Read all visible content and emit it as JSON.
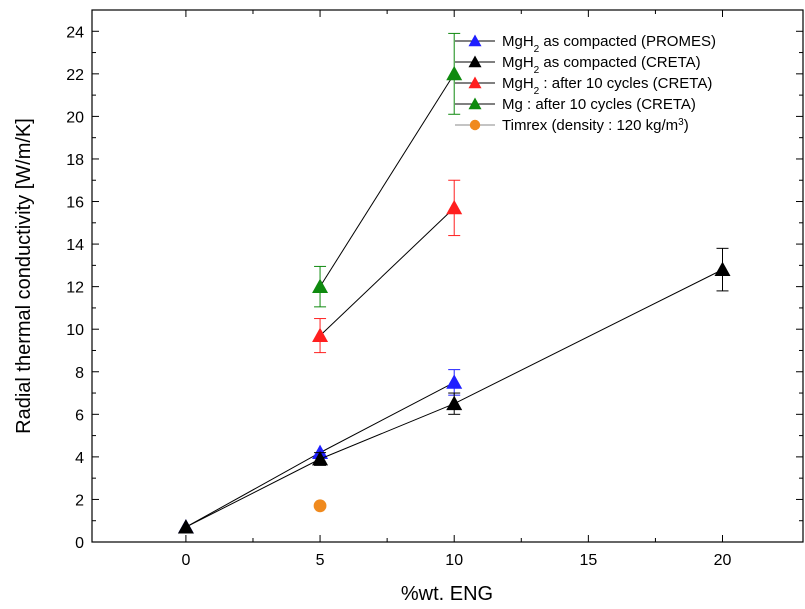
{
  "chart_data": {
    "type": "scatter",
    "title": "",
    "xlabel": "%wt. ENG",
    "ylabel": "Radial thermal conductivity  [W/m/K]",
    "xlim": [
      -3.5,
      23
    ],
    "ylim": [
      0,
      25
    ],
    "xticks": [
      0,
      5,
      10,
      15,
      20
    ],
    "yticks": [
      0,
      2,
      4,
      6,
      8,
      10,
      12,
      14,
      16,
      18,
      20,
      22,
      24
    ],
    "grid": false,
    "legend_position": "top-right",
    "series": [
      {
        "name": "MgH2 as compacted (PROMES)",
        "legend_parts": {
          "pre": "MgH",
          "sub": "2",
          "post": " as compacted (PROMES)"
        },
        "color": "#1f1fff",
        "marker": "triangle",
        "line": true,
        "points": [
          {
            "x": 0,
            "y": 0.7
          },
          {
            "x": 5,
            "y": 4.2
          },
          {
            "x": 10,
            "y": 7.5,
            "err": 0.6
          }
        ]
      },
      {
        "name": "MgH2 as compacted (CRETA)",
        "legend_parts": {
          "pre": "MgH",
          "sub": "2",
          "post": " as compacted (CRETA)"
        },
        "color": "#000000",
        "marker": "triangle",
        "line": true,
        "points": [
          {
            "x": 0,
            "y": 0.7
          },
          {
            "x": 5,
            "y": 3.9,
            "err": 0.3
          },
          {
            "x": 10,
            "y": 6.5,
            "err": 0.5
          },
          {
            "x": 20,
            "y": 12.8,
            "err": 1.0
          }
        ]
      },
      {
        "name": "MgH2 : after 10 cycles (CRETA)",
        "legend_parts": {
          "pre": "MgH",
          "sub": "2",
          "post": " : after 10 cycles (CRETA)"
        },
        "color": "#ff1f1f",
        "marker": "triangle",
        "line": true,
        "points": [
          {
            "x": 5,
            "y": 9.7,
            "err": 0.8
          },
          {
            "x": 10,
            "y": 15.7,
            "err": 1.3
          }
        ]
      },
      {
        "name": "Mg : after 10 cycles (CRETA)",
        "legend_parts": {
          "pre": "Mg : after 10 cycles (CRETA)",
          "sub": "",
          "post": ""
        },
        "color": "#0f8a0f",
        "marker": "triangle",
        "line": true,
        "points": [
          {
            "x": 5,
            "y": 12.0,
            "err": 0.95
          },
          {
            "x": 10,
            "y": 22.0,
            "err": 1.9
          }
        ]
      },
      {
        "name": "Timrex (density : 120 kg/m3)",
        "legend_parts": {
          "pre": "Timrex (density : 120 kg/m",
          "sup": "3",
          "post": ")"
        },
        "color": "#f08a1e",
        "marker": "circle",
        "line": false,
        "points": [
          {
            "x": 5,
            "y": 1.7
          }
        ]
      }
    ]
  }
}
